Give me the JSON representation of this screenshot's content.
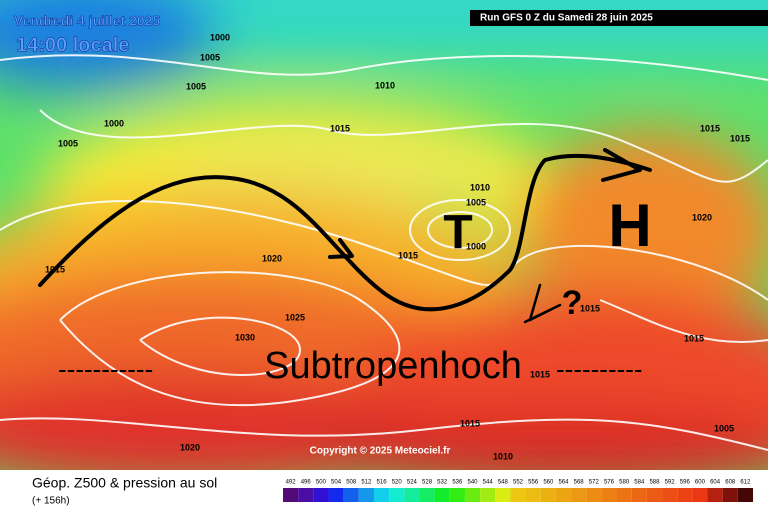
{
  "header": {
    "date": "Vendredi 4 juillet 2025",
    "time": "14:00 locale",
    "run": "Run GFS 0 Z du Samedi 28 juin 2025"
  },
  "copyright": "Copyright © 2025 Meteociel.fr",
  "footer": {
    "title": "Géop. Z500 & pression au sol",
    "lead": "(+ 156h)"
  },
  "colorbar": {
    "labels": [
      "492",
      "496",
      "500",
      "504",
      "508",
      "512",
      "516",
      "520",
      "524",
      "528",
      "532",
      "536",
      "540",
      "544",
      "548",
      "552",
      "556",
      "560",
      "564",
      "568",
      "572",
      "576",
      "580",
      "584",
      "588",
      "592",
      "596",
      "600",
      "604",
      "608",
      "612"
    ]
  },
  "annotations": {
    "low": "T",
    "high": "H",
    "question": "?",
    "subtropical_high": "Subtropenhoch",
    "dashes_left": "-----------",
    "dashes_right": "----------"
  },
  "isobars": [
    "1000",
    "1005",
    "1005",
    "1000",
    "1005",
    "1010",
    "1015",
    "1010",
    "1005",
    "1000",
    "1015",
    "1020",
    "1025",
    "1030",
    "1020",
    "1015",
    "1010",
    "1015",
    "1015",
    "1015",
    "1015",
    "1020",
    "1005",
    "1015",
    "1015"
  ]
}
